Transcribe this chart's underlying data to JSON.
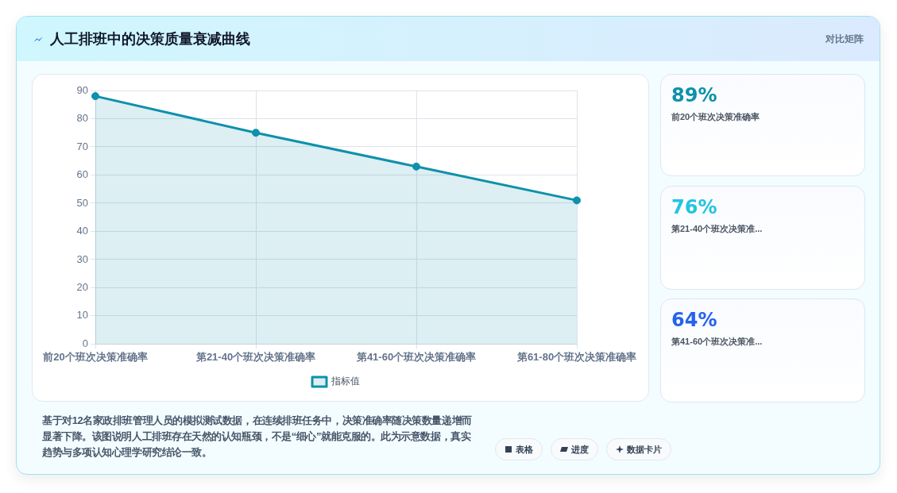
{
  "chart_data": [
    {
      "type": "area",
      "title": "人工排班中的决策质量衰减曲线",
      "categories": [
        "前20个班次决策准确率",
        "第21-40个班次决策准确率",
        "第41-60个班次决策准确率",
        "第61-80个班次决策准确率"
      ],
      "series": [
        {
          "name": "指标值",
          "color": "#0e91ab",
          "values": [
            88,
            75,
            63,
            51
          ]
        }
      ],
      "ylim": [
        0,
        90
      ],
      "yticks": [
        0,
        10,
        20,
        30,
        40,
        50,
        60,
        70,
        80,
        90
      ],
      "grid": true,
      "legend": "bottom",
      "marker": "circle",
      "annotations": [
        "对比矩阵",
        "基于对12名家政排班管理人员的模拟测试数据，在连续排班任务中，决策准确率随决策数量递增而显著下降。该图说明人工排班存在天然的认知瓶颈，不是“细心”就能克服的。此为示意数据，真实趋势与多项认知心理学研究结论一致。",
        "表格",
        "进度",
        "数据卡片"
      ]
    },
    {
      "type": "other",
      "categories": [
        "前20个班次决策准确率",
        "第21-40个班次决策准...",
        "第41-60个班次决策准..."
      ],
      "value_labels": [
        "89%",
        "76%",
        "64%"
      ]
    }
  ]
}
